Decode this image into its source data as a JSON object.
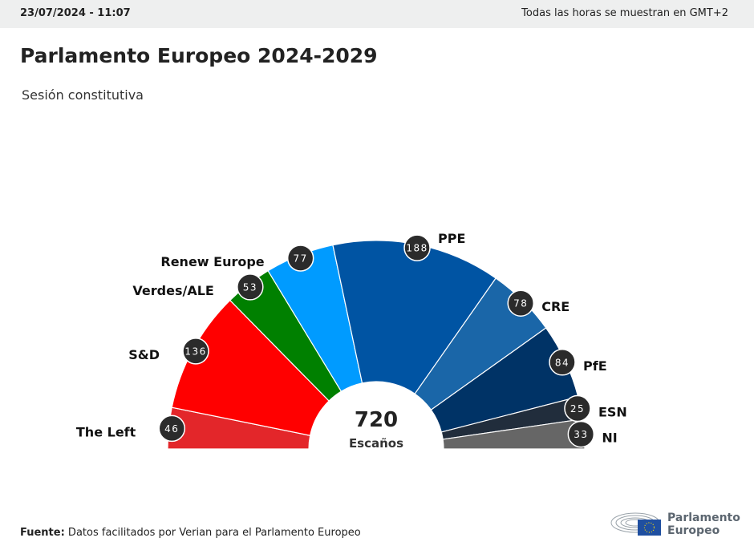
{
  "header": {
    "datetime": "23/07/2024 - 11:07",
    "timezone_note": "Todas las horas se muestran en GMT+2"
  },
  "title": "Parlamento Europeo 2024-2029",
  "subtitle": "Sesión constitutiva",
  "footer": {
    "source_label": "Fuente:",
    "source_text": " Datos facilitados por Verian para el Parlamento Europeo",
    "logo_line1": "Parlamento",
    "logo_line2": "Europeo"
  },
  "chart_data": {
    "type": "pie",
    "variant": "semicircle-donut",
    "total": 720,
    "center_label": "Escaños",
    "series": [
      {
        "name": "The Left",
        "value": 46,
        "color": "#e3262a"
      },
      {
        "name": "S&D",
        "value": 136,
        "color": "#ff0000"
      },
      {
        "name": "Verdes/ALE",
        "value": 53,
        "color": "#008000"
      },
      {
        "name": "Renew Europe",
        "value": 77,
        "color": "#009bff"
      },
      {
        "name": "PPE",
        "value": 188,
        "color": "#0054a3"
      },
      {
        "name": "CRE",
        "value": 78,
        "color": "#1a66a8"
      },
      {
        "name": "PfE",
        "value": 84,
        "color": "#003366"
      },
      {
        "name": "ESN",
        "value": 25,
        "color": "#212d3c"
      },
      {
        "name": "NI",
        "value": 33,
        "color": "#666666"
      }
    ]
  }
}
